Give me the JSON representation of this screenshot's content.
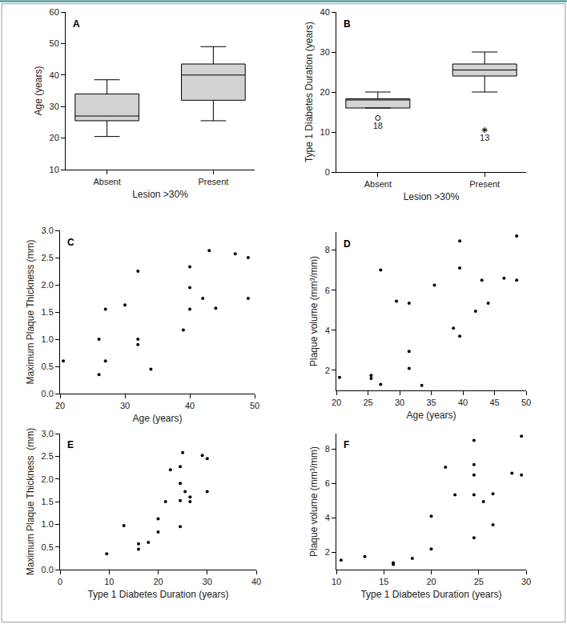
{
  "chart_data": [
    {
      "type": "box",
      "annotations": [
        "A"
      ],
      "x_label": "Lesion >30%",
      "y_label": "Age (years)",
      "categories": [
        "Absent",
        "Present"
      ],
      "lowerfence": [
        20.5,
        25.5
      ],
      "q1": [
        25.5,
        32
      ],
      "median": [
        27,
        40
      ],
      "q3": [
        34,
        43.5
      ],
      "upperfence": [
        38.5,
        49
      ],
      "outliers": [],
      "color": "#d3d3d3",
      "ylim": [
        10,
        60
      ],
      "yticks": [
        10,
        20,
        30,
        40,
        50,
        60
      ],
      "grid": false
    },
    {
      "type": "box",
      "annotations": [
        "B"
      ],
      "x_label": "Lesion >30%",
      "y_label": "Type 1 Diabetes Duration (years)",
      "categories": [
        "Absent",
        "Present"
      ],
      "lowerfence": [
        16,
        20
      ],
      "q1": [
        16,
        24
      ],
      "median": [
        18,
        25.5
      ],
      "q3": [
        18.3,
        27
      ],
      "upperfence": [
        20,
        30
      ],
      "outliers": [
        {
          "category": "Absent",
          "value": 13.5,
          "label": "18",
          "marker": "circle-open"
        },
        {
          "category": "Present",
          "value": 10.5,
          "label": "13",
          "marker": "asterisk-open"
        }
      ],
      "color": "#d3d3d3",
      "ylim": [
        0,
        40
      ],
      "yticks": [
        0,
        10,
        20,
        30,
        40
      ],
      "grid": false
    },
    {
      "type": "scatter",
      "annotations": [
        "C"
      ],
      "x_label": "Age (years)",
      "y_label": "Maximum Plaque Thickness (mm)",
      "x": [
        20.5,
        26,
        26,
        27,
        27,
        30,
        32,
        32,
        32,
        34,
        39,
        40,
        40,
        40,
        42,
        43,
        44,
        47,
        49,
        49
      ],
      "values": [
        0.6,
        1.0,
        0.35,
        1.55,
        0.6,
        1.63,
        2.25,
        1.0,
        0.9,
        0.45,
        1.17,
        2.33,
        1.95,
        1.55,
        1.75,
        2.63,
        1.57,
        2.57,
        2.5,
        1.75
      ],
      "color": "#000000",
      "marker": "circle",
      "xlim": [
        20,
        50
      ],
      "xticks": [
        20,
        30,
        40,
        50
      ],
      "ylim": [
        0,
        3
      ],
      "yticks": [
        {
          "value": 0,
          "label": "0.0"
        },
        {
          "value": 0.5,
          "label": "0.5"
        },
        {
          "value": 1,
          "label": "1.0"
        },
        {
          "value": 1.5,
          "label": "1.5"
        },
        {
          "value": 2,
          "label": "2.0"
        },
        {
          "value": 2.5,
          "label": "2.5"
        },
        {
          "value": 3,
          "label": "3.0"
        }
      ],
      "grid": false
    },
    {
      "type": "scatter",
      "annotations": [
        "D"
      ],
      "x_label": "Age (years)",
      "y_label": "Plaque volume (mm³/mm)",
      "x": [
        20.5,
        25.5,
        25.5,
        27,
        27,
        29.5,
        31.5,
        31.5,
        31.5,
        33.5,
        35.5,
        38.5,
        39.5,
        39.5,
        39.5,
        42,
        43,
        44,
        46.5,
        48.5,
        48.5
      ],
      "values": [
        1.65,
        1.75,
        1.6,
        7.0,
        1.3,
        5.45,
        5.35,
        2.95,
        2.1,
        1.25,
        6.25,
        4.1,
        8.45,
        7.1,
        3.7,
        4.95,
        6.5,
        5.35,
        6.6,
        8.7,
        6.5
      ],
      "color": "#000000",
      "marker": "circle",
      "xlim": [
        20,
        50
      ],
      "xticks": [
        20,
        25,
        30,
        35,
        40,
        45,
        50
      ],
      "ylim": [
        1.0,
        8.9
      ],
      "yticks": [
        2,
        4,
        6,
        8
      ],
      "grid": false
    },
    {
      "type": "scatter",
      "annotations": [
        "E"
      ],
      "x_label": "Type 1 Diabetes Duration (years)",
      "y_label": "Maximum Plaque Thickness  (mm)",
      "x": [
        9.5,
        13,
        16,
        16,
        18,
        20,
        20,
        21.5,
        22.5,
        24.5,
        24.5,
        24.5,
        24.5,
        25,
        25.5,
        26.5,
        26.5,
        29,
        30,
        30
      ],
      "values": [
        0.35,
        0.97,
        0.57,
        0.45,
        0.6,
        1.12,
        0.83,
        1.5,
        2.2,
        2.27,
        1.9,
        1.52,
        0.95,
        2.58,
        1.72,
        1.6,
        1.5,
        2.52,
        2.45,
        1.72
      ],
      "color": "#000000",
      "marker": "circle",
      "xlim": [
        0,
        40
      ],
      "xticks": [
        0,
        10,
        20,
        30,
        40
      ],
      "ylim": [
        0,
        3
      ],
      "yticks": [
        {
          "value": 0,
          "label": "0.0"
        },
        {
          "value": 0.5,
          "label": "0.5"
        },
        {
          "value": 1,
          "label": "1.0"
        },
        {
          "value": 1.5,
          "label": "1.5"
        },
        {
          "value": 2,
          "label": "2.0"
        },
        {
          "value": 2.5,
          "label": "2.5"
        },
        {
          "value": 3,
          "label": "3.0"
        }
      ],
      "grid": false
    },
    {
      "type": "scatter",
      "annotations": [
        "F"
      ],
      "x_label": "Type 1 Diabetes Duration (years)",
      "y_label": "Plaque volume (mm³/mm)",
      "x": [
        10.5,
        13,
        16,
        16,
        18,
        20,
        20,
        21.5,
        22.5,
        24.5,
        24.5,
        24.5,
        24.5,
        24.5,
        25.5,
        26.5,
        26.5,
        28.5,
        29.5,
        29.5
      ],
      "values": [
        1.55,
        1.75,
        1.3,
        1.4,
        1.65,
        4.1,
        2.2,
        6.95,
        5.35,
        8.5,
        7.1,
        6.5,
        5.35,
        2.85,
        4.95,
        5.4,
        3.6,
        6.6,
        8.75,
        6.5
      ],
      "color": "#000000",
      "marker": "circle",
      "xlim": [
        10,
        30
      ],
      "xticks": [
        10,
        15,
        20,
        25,
        30
      ],
      "ylim": [
        1.0,
        8.9
      ],
      "yticks": [
        2,
        4,
        6,
        8
      ],
      "grid": false
    }
  ]
}
